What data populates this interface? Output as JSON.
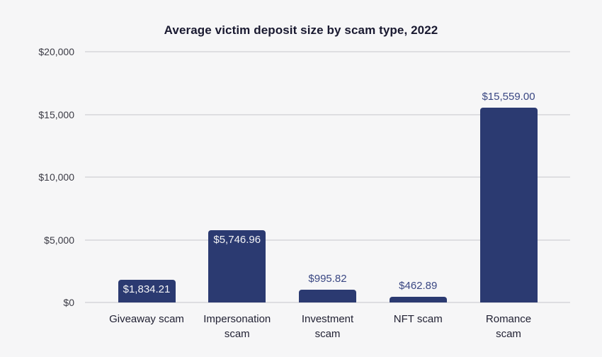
{
  "chart_data": {
    "type": "bar",
    "title": "Average victim deposit size by scam type, 2022",
    "categories": [
      [
        "Giveaway scam"
      ],
      [
        "Impersonation",
        "scam"
      ],
      [
        "Investment",
        "scam"
      ],
      [
        "NFT scam"
      ],
      [
        "Romance",
        "scam"
      ]
    ],
    "values": [
      1834.21,
      5746.96,
      995.82,
      462.89,
      15559.0
    ],
    "value_labels": [
      "$1,834.21",
      "$5,746.96",
      "$995.82",
      "$462.89",
      "$15,559.00"
    ],
    "value_label_positions": [
      "inside",
      "inside",
      "above",
      "above",
      "above"
    ],
    "xlabel": "",
    "ylabel": "",
    "ylim": [
      0,
      20000
    ],
    "y_ticks": [
      {
        "value": 0,
        "label": "$0"
      },
      {
        "value": 5000,
        "label": "$5,000"
      },
      {
        "value": 10000,
        "label": "$10,000"
      },
      {
        "value": 15000,
        "label": "$15,000"
      },
      {
        "value": 20000,
        "label": "$20,000"
      }
    ],
    "grid": "horizontal",
    "legend": "none",
    "colors": {
      "background": "#f6f6f7",
      "bar": "#2b3a71",
      "gridline": "#dedee1",
      "title_text": "#191930",
      "y_tick_text": "#3b3b45",
      "x_tick_text": "#222234",
      "value_label_above": "#3a4783",
      "value_label_inside": "#f4f4f6"
    }
  }
}
